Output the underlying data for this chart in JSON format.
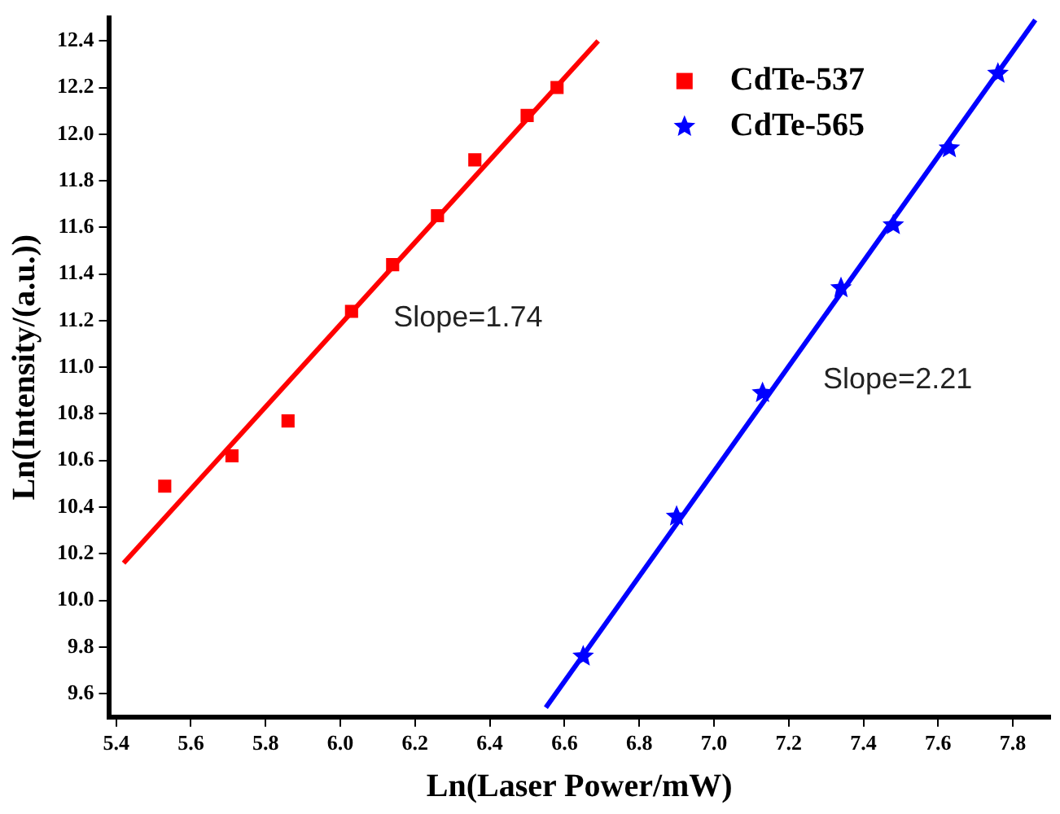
{
  "chart_data": {
    "type": "scatter",
    "xlabel": "Ln(Laser Power/mW)",
    "ylabel": "Ln(Intensity/(a.u.))",
    "xlim": [
      5.38,
      7.9
    ],
    "xticks": [
      5.4,
      5.6,
      5.8,
      {
        "value": 6,
        "label": "6.0"
      },
      6.2,
      6.4,
      6.6,
      6.8,
      {
        "value": 7,
        "label": "7.0"
      },
      7.2,
      7.4,
      7.6,
      7.8
    ],
    "ylim": [
      9.5,
      12.5
    ],
    "yticks": [
      9.6,
      9.8,
      {
        "value": 10,
        "label": "10.0"
      },
      10.2,
      10.4,
      10.6,
      10.8,
      {
        "value": 11,
        "label": "11.0"
      },
      11.2,
      11.4,
      11.6,
      11.8,
      {
        "value": 12,
        "label": "12.0"
      },
      12.2,
      12.4
    ],
    "grid": false,
    "legend": "top right",
    "series": [
      {
        "name": "CdTe-537",
        "marker": "square",
        "color": "#ff0000",
        "x": [
          5.53,
          5.71,
          5.86,
          6.03,
          6.14,
          6.26,
          6.36,
          6.5,
          6.58
        ],
        "values": [
          10.49,
          10.62,
          10.77,
          11.24,
          11.44,
          11.65,
          11.89,
          12.08,
          12.2
        ]
      },
      {
        "name": "CdTe-565",
        "marker": "star",
        "color": "#0000ff",
        "x": [
          6.65,
          6.9,
          7.13,
          7.34,
          7.48,
          7.63,
          7.76
        ],
        "values": [
          9.76,
          10.36,
          10.89,
          11.34,
          11.61,
          11.94,
          12.26
        ]
      },
      {
        "type": "line",
        "marker": "none",
        "line_style": "solid",
        "color": "#ff0000",
        "x": [
          5.42,
          6.69
        ],
        "values": [
          10.16,
          12.4
        ]
      },
      {
        "type": "line",
        "marker": "none",
        "line_style": "solid",
        "color": "#0000ff",
        "x": [
          6.55,
          7.86
        ],
        "values": [
          9.54,
          12.49
        ]
      }
    ],
    "annotations": [
      "Slope=1.74",
      "Slope=2.21"
    ]
  }
}
